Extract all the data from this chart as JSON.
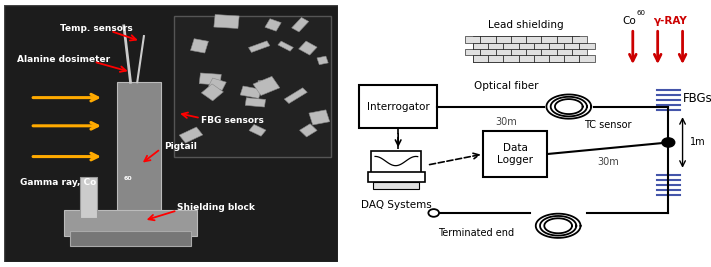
{
  "bg_color": "#ffffff",
  "photo_bg": "#1c1c1c",
  "photo_inset_bg": "#222222",
  "lw": 1.5,
  "line_color": "#000000",
  "red_color": "#cc0000",
  "blue_color": "#4455aa",
  "labels": {
    "temp_sensors": "Temp. sensors",
    "alanine": "Alanine dosimeter",
    "fbg_sensors": "FBG sensors",
    "pigtail": "Pigtail",
    "gamma_ray": "Gamma ray, Co",
    "gamma_sup": "60",
    "shielding_block": "Shielding block",
    "lead_shielding": "Lead shielding",
    "co60": "Co",
    "co60_sup": "60",
    "gamma_ray_label": "γ-RAY",
    "optical_fiber": "Optical fiber",
    "optical_30m": "30m",
    "tc_sensor": "TC sensor",
    "tc_30m": "30m",
    "fbgs": "FBGs",
    "one_m": "1m",
    "terminated": "Terminated end",
    "daq": "DAQ Systems",
    "interrogator": "Interrogator",
    "data_logger": "Data\nLogger"
  }
}
